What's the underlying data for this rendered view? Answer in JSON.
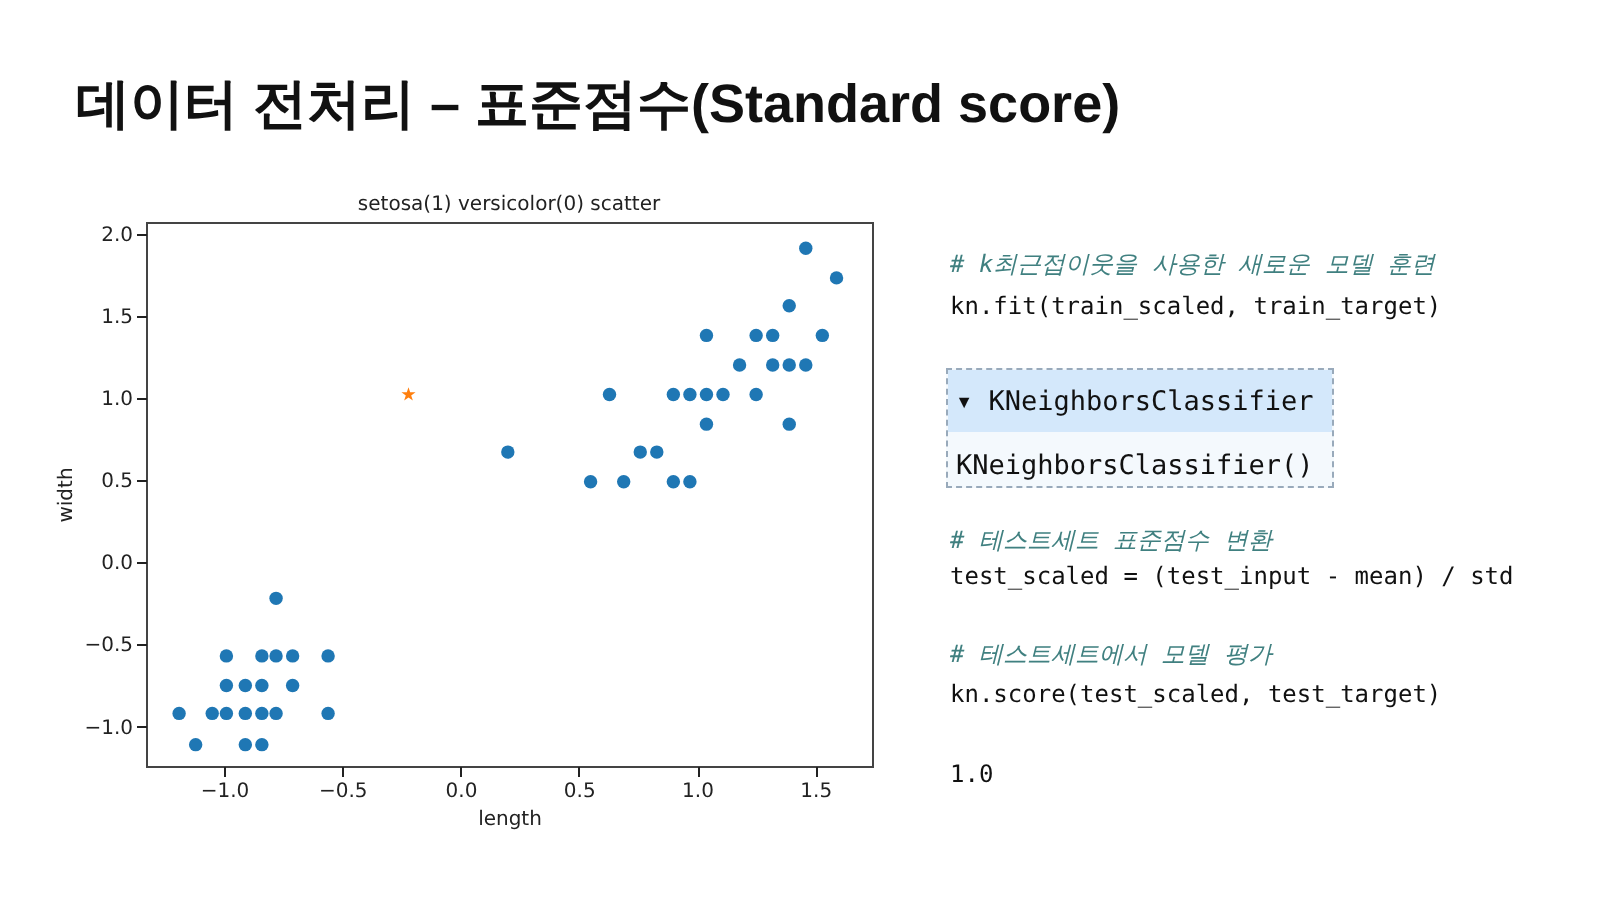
{
  "chart_data": {
    "type": "scatter",
    "title": "setosa(1) versicolor(0) scatter",
    "xlabel": "length",
    "ylabel": "width",
    "annotations": [
      "데이터 전처리 – 표준점수(Standard score)",
      "# k최근접이웃을 사용한 새로운 모델 훈련",
      "kn.fit(train_scaled, train_target)",
      "▾ KNeighborsClassifier",
      "KNeighborsClassifier()",
      "# 테스트세트 표준점수 변환",
      "test_scaled = (test_input - mean) / std",
      "# 테스트세트에서 모델 평가",
      "kn.score(test_scaled, test_target)",
      "1.0"
    ],
    "series": [
      {
        "color": "#1f77b4",
        "marker": "circle",
        "x": [
          -0.78,
          -0.99,
          -0.84,
          -0.78,
          -0.71,
          -0.56,
          -0.99,
          -0.91,
          -0.84,
          -0.71,
          -1.19,
          -1.05,
          -0.99,
          -0.91,
          -0.84,
          -0.78,
          -0.56,
          -1.12,
          -0.91,
          -0.84,
          0.2,
          0.63,
          1.46,
          1.59,
          1.39,
          1.04,
          1.25,
          1.32,
          1.53,
          1.18,
          1.32,
          1.39,
          1.46,
          0.9,
          0.97,
          1.04,
          1.11,
          1.25,
          1.04,
          1.39,
          0.76,
          0.83,
          0.55,
          0.69,
          0.9,
          0.97
        ],
        "values": [
          -0.22,
          -0.57,
          -0.57,
          -0.57,
          -0.57,
          -0.57,
          -0.75,
          -0.75,
          -0.75,
          -0.75,
          -0.92,
          -0.92,
          -0.92,
          -0.92,
          -0.92,
          -0.92,
          -0.92,
          -1.11,
          -1.11,
          -1.11,
          0.67,
          1.02,
          1.91,
          1.73,
          1.56,
          1.38,
          1.38,
          1.38,
          1.38,
          1.2,
          1.2,
          1.2,
          1.2,
          1.02,
          1.02,
          1.02,
          1.02,
          1.02,
          0.84,
          0.84,
          0.67,
          0.67,
          0.49,
          0.49,
          0.49,
          0.49
        ]
      },
      {
        "color": "#ff7f0e",
        "marker": "star",
        "x": [
          -0.22
        ],
        "values": [
          1.02
        ]
      }
    ],
    "xlim": [
      -1.33,
      1.74
    ],
    "ylim": [
      -1.24,
      2.07
    ],
    "xticks": [
      {
        "value": -1,
        "label": "−1.0"
      },
      {
        "value": -0.5,
        "label": "−0.5"
      },
      {
        "value": 0,
        "label": "0.0"
      },
      {
        "value": 0.5,
        "label": "0.5"
      },
      {
        "value": 1,
        "label": "1.0"
      },
      {
        "value": 1.5,
        "label": "1.5"
      }
    ],
    "yticks": [
      {
        "value": -1,
        "label": "−1.0"
      },
      {
        "value": -0.5,
        "label": "−0.5"
      },
      {
        "value": 0,
        "label": "0.0"
      },
      {
        "value": 0.5,
        "label": "0.5"
      },
      {
        "value": 1,
        "label": "1.0"
      },
      {
        "value": 1.5,
        "label": "1.5"
      },
      {
        "value": 2,
        "label": "2.0"
      }
    ],
    "grid": false
  }
}
